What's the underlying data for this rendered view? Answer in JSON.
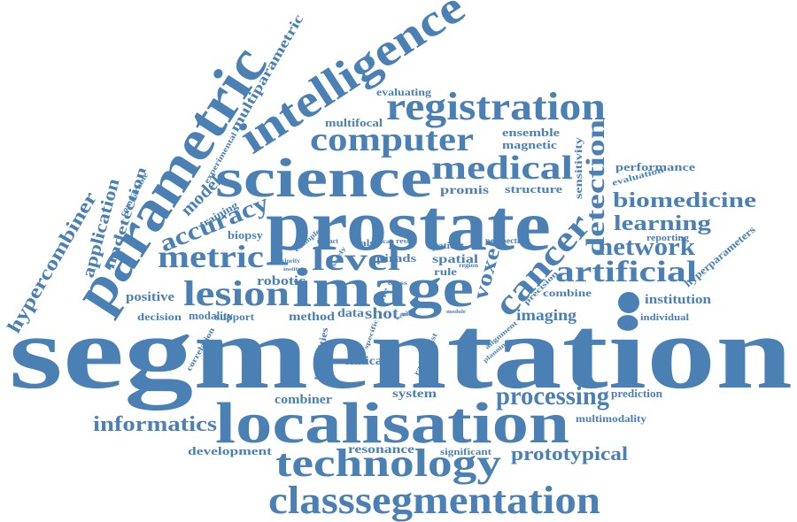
{
  "colors": {
    "word": "#4a80b4",
    "background": "#ffffff"
  },
  "words": {
    "segmentation": "segmentation",
    "prostate": "prostate",
    "localisation": "localisation",
    "image": "image",
    "science": "science",
    "parametric": "parametric",
    "intelligence": "intelligence",
    "registration": "registration",
    "technology": "technology",
    "classsegmentation": "classsegmentation",
    "computer": "computer",
    "medical": "medical",
    "cancer": "cancer",
    "lesion": "lesion",
    "metric": "metric",
    "level": "level",
    "detection": "detection",
    "artificial": "artificial",
    "network": "network",
    "processing": "processing",
    "accuracy": "accuracy",
    "biomedicine": "biomedicine",
    "learning": "learning",
    "informatics": "informatics",
    "prototypical": "prototypical",
    "multiparametric": "multiparametric",
    "hypercombiner": "hypercombiner",
    "application": "application",
    "nndetection": "nndetection",
    "model": "model",
    "robotic": "robotic",
    "positive": "positive",
    "modality": "modality",
    "biopsy": "biopsy",
    "training": "training",
    "experimental": "experimental",
    "comparable": "comparable",
    "multifocal": "multifocal",
    "evaluating": "evaluating",
    "ensemble": "ensemble",
    "magnetic": "magnetic",
    "promis": "promis",
    "structure": "structure",
    "sensitivity": "sensitivity",
    "performance": "performance",
    "evaluation": "evaluation",
    "reporting": "reporting",
    "hyperparameters": "hyperparameters",
    "institution": "institution",
    "individual": "individual",
    "combine": "combine",
    "imaging": "imaging",
    "voxel": "voxel",
    "pirads": "pirads",
    "spatial": "spatial",
    "rule": "rule",
    "false": "false",
    "patient": "patient",
    "perspective": "perspective",
    "precision": "precision",
    "shot": "shot",
    "data": "data",
    "method": "method",
    "decision": "decision",
    "support": "support",
    "modalities": "modalities",
    "correlation": "correlation",
    "clinical": "clinical",
    "radiologist": "radiologist",
    "alignment": "alignment",
    "planning": "planning",
    "combiner": "combiner",
    "system": "system",
    "prediction": "prediction",
    "multimodality": "multimodality",
    "development": "development",
    "resonance": "resonance",
    "significant": "significant",
    "impact": "impact",
    "majority": "majority",
    "institute": "institute",
    "example": "example",
    "scan": "scan",
    "result": "result",
    "region": "region",
    "module": "module",
    "made": "made",
    "achieve": "achieve",
    "cross": "cross",
    "specific": "specific",
    "solely": "solely",
    "life": "life"
  }
}
